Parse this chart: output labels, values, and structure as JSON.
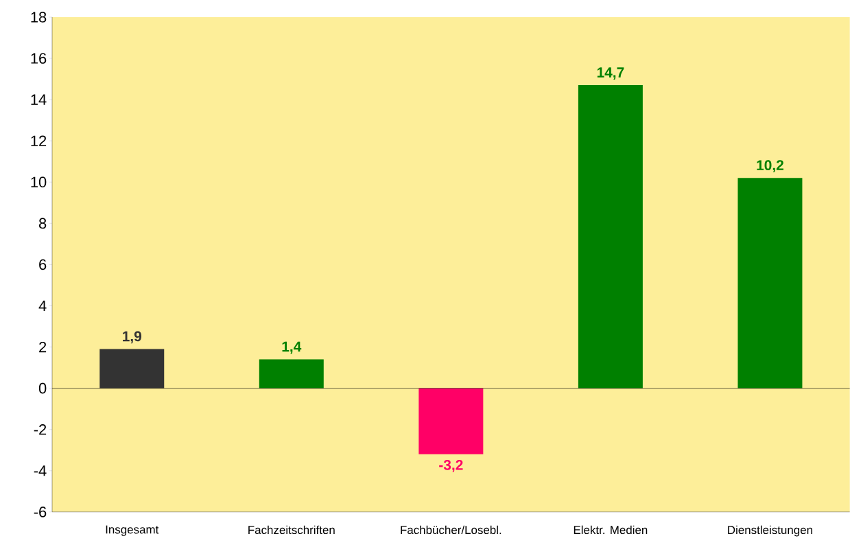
{
  "chart_data": {
    "type": "bar",
    "categories": [
      "Insgesamt",
      "Fachzeitschriften",
      "Fachbücher/Losebl.",
      "Elektr. Medien",
      "Dienstleistungen"
    ],
    "values": [
      1.9,
      1.4,
      -3.2,
      14.7,
      10.2
    ],
    "colors": [
      "#333333",
      "#008000",
      "#ff0066",
      "#008000",
      "#008000"
    ],
    "value_labels": [
      "1,9",
      "1,4",
      "-3,2",
      "14,7",
      "10,2"
    ],
    "ylim": [
      -6,
      18
    ],
    "yticks": [
      -6,
      -4,
      -2,
      0,
      2,
      4,
      6,
      8,
      10,
      12,
      14,
      16,
      18
    ]
  }
}
